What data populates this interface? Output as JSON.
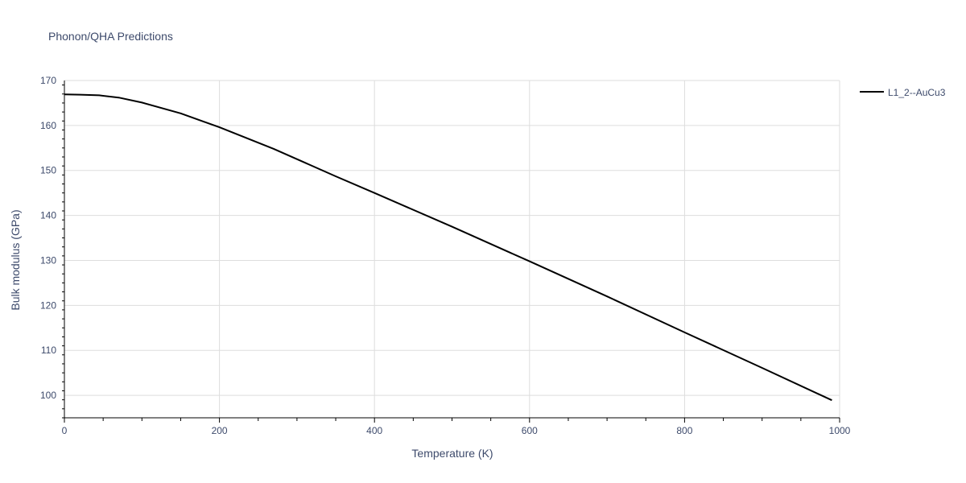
{
  "chart_data": {
    "type": "line",
    "title": "Phonon/QHA Predictions",
    "xlabel": "Temperature (K)",
    "ylabel": "Bulk modulus (GPa)",
    "xlim": [
      0,
      1000
    ],
    "ylim": [
      95,
      170
    ],
    "xticks": [
      0,
      200,
      400,
      600,
      800,
      1000
    ],
    "yticks": [
      100,
      110,
      120,
      130,
      140,
      150,
      160,
      170
    ],
    "grid": true,
    "legend_position": "top-right",
    "series": [
      {
        "name": "L1_2--AuCu3",
        "color": "#000000",
        "x": [
          0,
          20,
          45,
          70,
          100,
          150,
          200,
          270,
          350,
          400,
          500,
          600,
          700,
          800,
          900,
          990
        ],
        "y": [
          166.9,
          166.85,
          166.7,
          166.2,
          165.1,
          162.7,
          159.6,
          154.8,
          148.7,
          145.0,
          137.5,
          129.8,
          122.0,
          114.0,
          106.1,
          98.9
        ]
      }
    ]
  }
}
